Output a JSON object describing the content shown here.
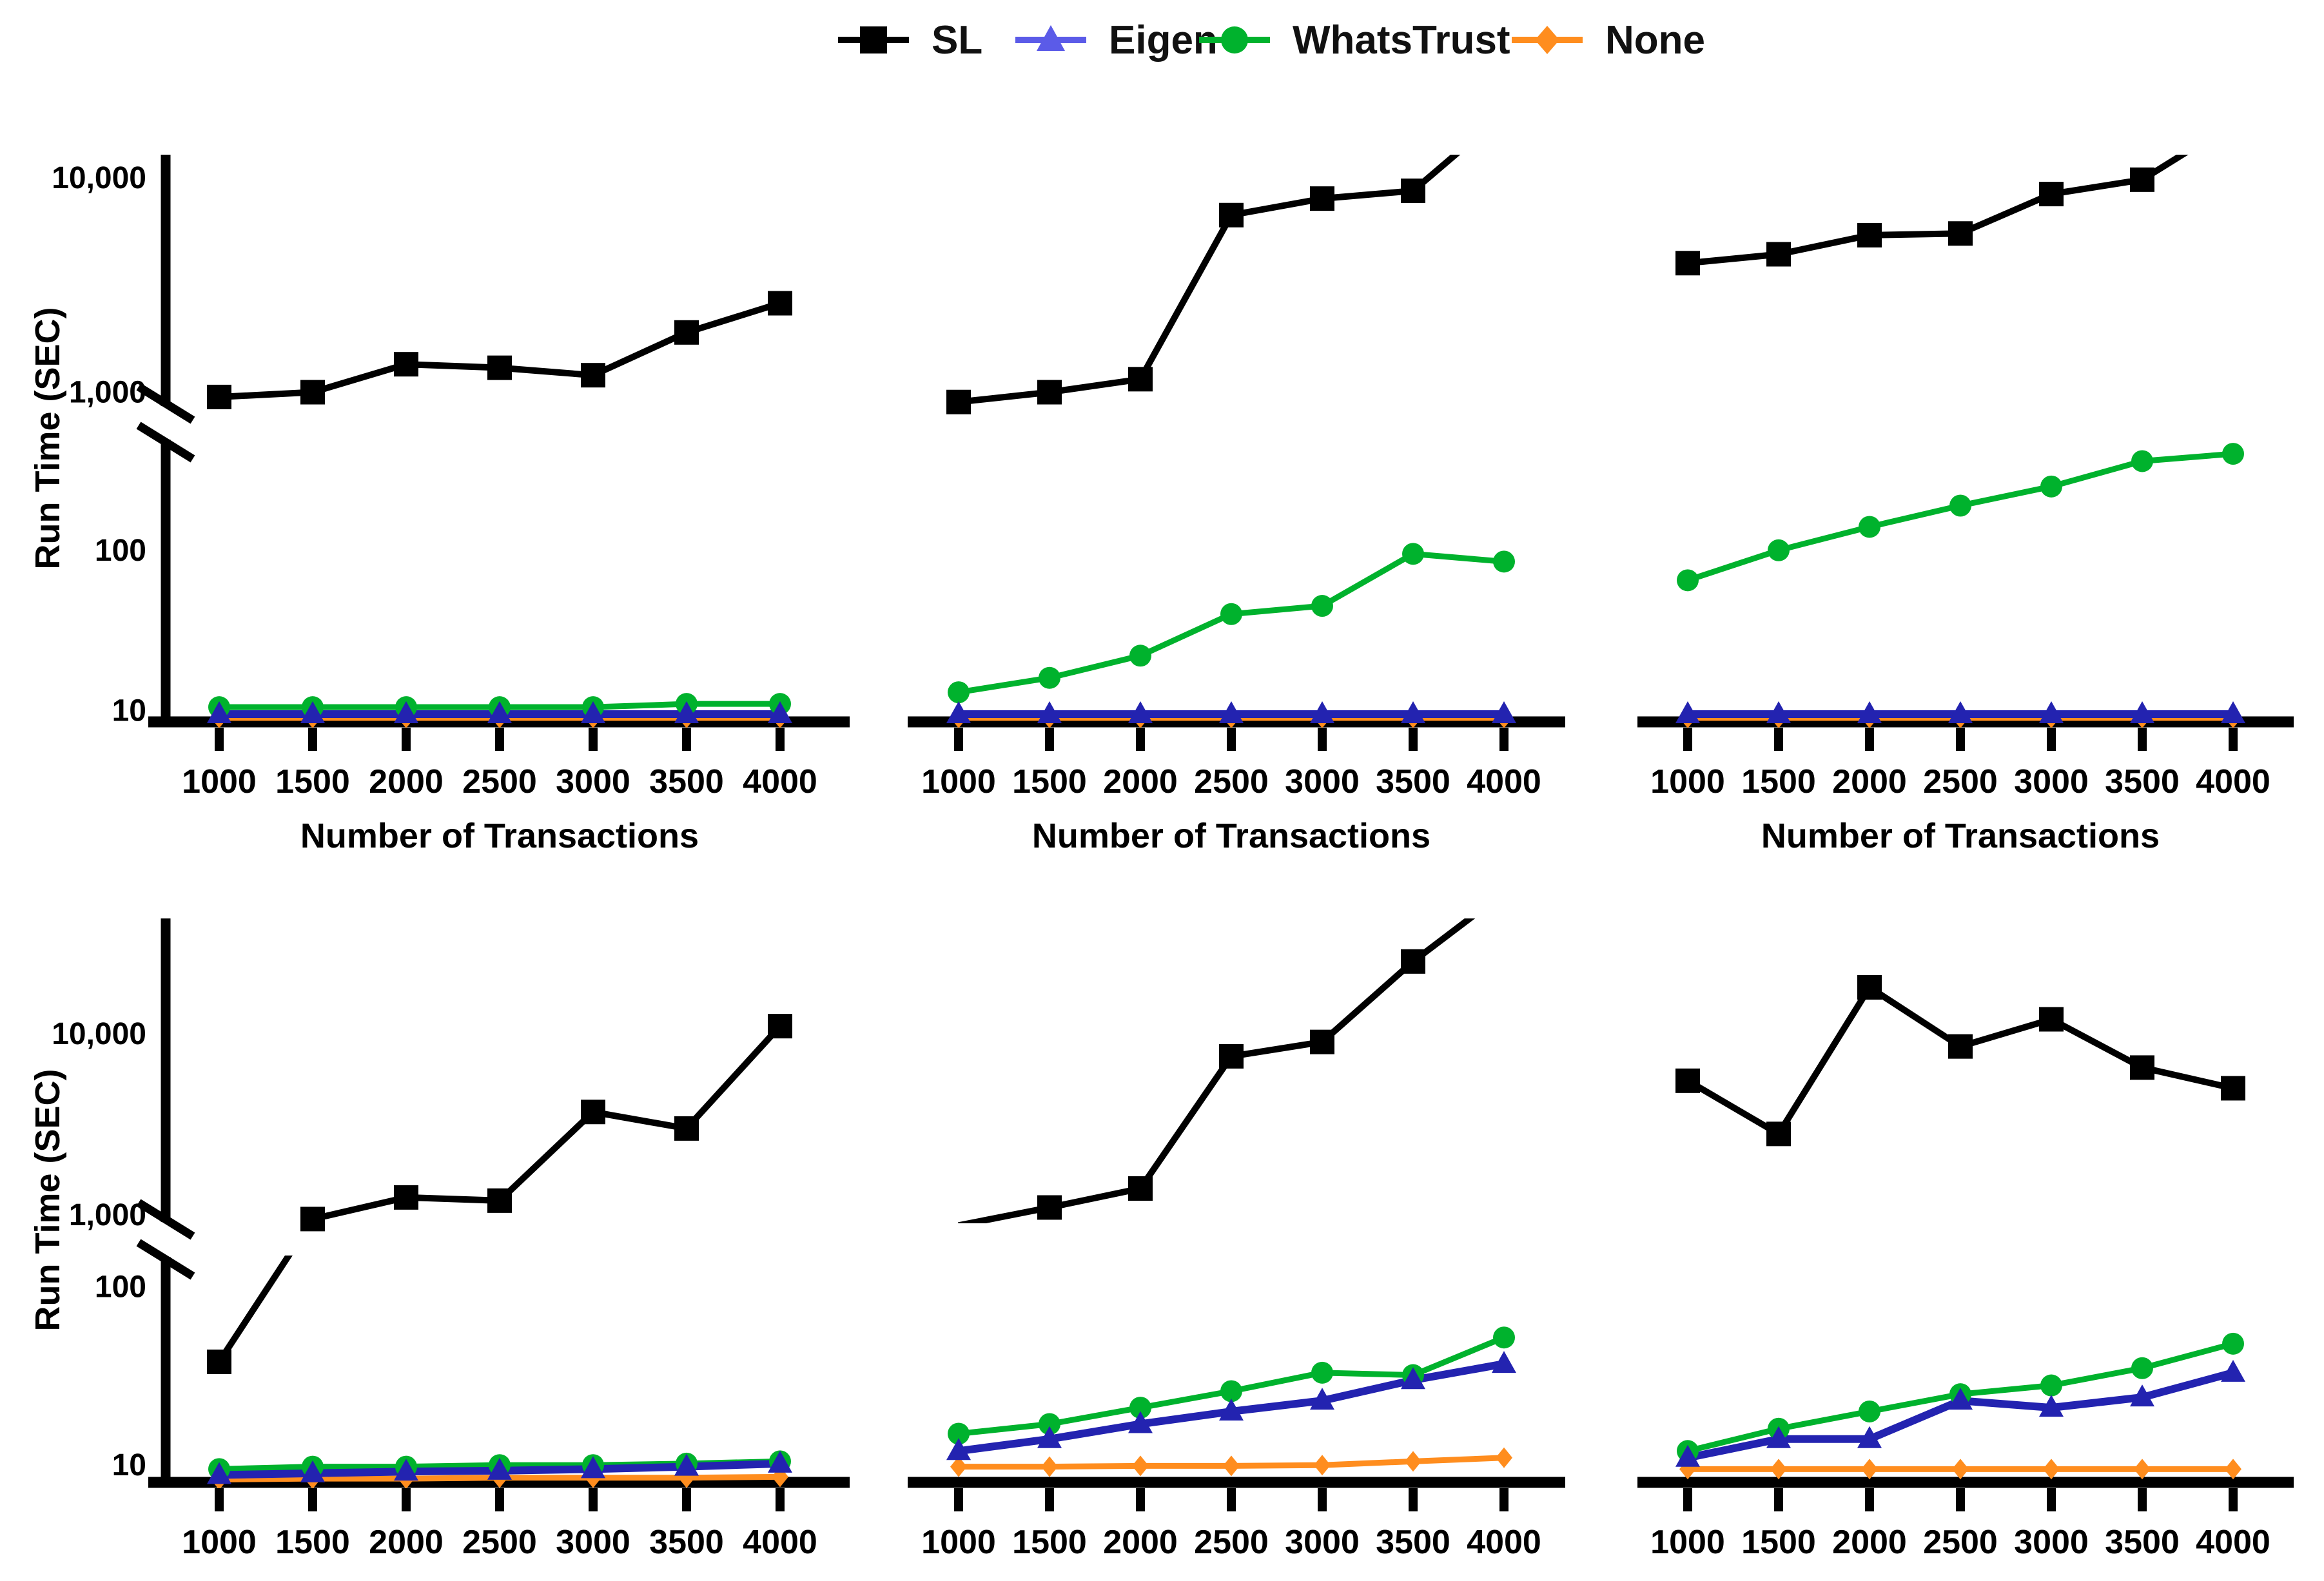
{
  "legend": {
    "items": [
      {
        "label": "SL",
        "color": "#000000",
        "swatch_color": "#000000",
        "marker": "square"
      },
      {
        "label": "Eigen",
        "color": "#2323B0",
        "swatch_color": "#5B5BE8",
        "marker": "triangle"
      },
      {
        "label": "WhatsTrust",
        "color": "#00B22D",
        "swatch_color": "#00B22D",
        "marker": "circle"
      },
      {
        "label": "None",
        "color": "#FF8D1E",
        "swatch_color": "#FF8D1E",
        "marker": "diamond"
      }
    ]
  },
  "chart_data": {
    "type": "line",
    "title": "",
    "xlabel": "Number of Transactions",
    "ylabel": "Run Time (SEC)",
    "x": [
      1000,
      1500,
      2000,
      2500,
      3000,
      3500,
      4000
    ],
    "x_tick_labels": [
      "1000",
      "1500",
      "2000",
      "2500",
      "3000",
      "3500",
      "4000"
    ],
    "y_scale": "log-broken",
    "grid": false,
    "legend_position": "top-center",
    "rows": [
      {
        "y_tick_labels": [
          "10",
          "100",
          "1,000",
          "10,000"
        ],
        "y_tick_values": [
          10,
          100,
          1000,
          10000
        ],
        "break_between": [
          500,
          850
        ],
        "ylim": [
          8.5,
          13000
        ]
      },
      {
        "y_tick_labels": [
          "10",
          "100",
          "1,000",
          "10,000"
        ],
        "y_tick_values": [
          10,
          100,
          1000,
          10000
        ],
        "break_between": [
          150,
          900
        ],
        "ylim": [
          8,
          45000
        ]
      }
    ],
    "subplots": [
      {
        "row": 0,
        "col": 0,
        "series": [
          {
            "name": "SL",
            "values": [
              950,
              1000,
              1350,
              1300,
              1200,
              1900,
              2600
            ]
          },
          {
            "name": "Eigen",
            "values": [
              9.5,
              9.5,
              9.5,
              9.5,
              9.5,
              9.5,
              9.5
            ]
          },
          {
            "name": "WhatsTrust",
            "values": [
              10.5,
              10.5,
              10.5,
              10.5,
              10.5,
              11,
              11
            ]
          },
          {
            "name": "None",
            "values": [
              9,
              9,
              9,
              9,
              9,
              9,
              9
            ]
          }
        ]
      },
      {
        "row": 0,
        "col": 1,
        "series": [
          {
            "name": "SL",
            "values": [
              900,
              1000,
              1150,
              6700,
              8000,
              8700,
              20000
            ]
          },
          {
            "name": "Eigen",
            "values": [
              9.5,
              9.5,
              9.5,
              9.5,
              9.5,
              9.5,
              9.5
            ]
          },
          {
            "name": "WhatsTrust",
            "values": [
              13,
              16,
              22,
              40,
              45,
              95,
              85
            ]
          },
          {
            "name": "None",
            "values": [
              9,
              9,
              9,
              9,
              9,
              9,
              9
            ]
          }
        ]
      },
      {
        "row": 0,
        "col": 2,
        "series": [
          {
            "name": "SL",
            "values": [
              4000,
              4400,
              5400,
              5500,
              8400,
              9800,
              18000
            ]
          },
          {
            "name": "Eigen",
            "values": [
              9.5,
              9.5,
              9.5,
              9.5,
              9.5,
              9.5,
              9.5
            ]
          },
          {
            "name": "WhatsTrust",
            "values": [
              65,
              100,
              140,
              190,
              250,
              360,
              400
            ]
          },
          {
            "name": "None",
            "values": [
              9,
              9,
              9,
              9,
              9,
              9,
              9
            ]
          }
        ]
      },
      {
        "row": 1,
        "col": 0,
        "series": [
          {
            "name": "SL",
            "values": [
              38,
              950,
              1250,
              1200,
              3700,
              3000,
              11000
            ]
          },
          {
            "name": "Eigen",
            "values": [
              8.8,
              9,
              9.2,
              9.3,
              9.5,
              9.8,
              10.2
            ]
          },
          {
            "name": "WhatsTrust",
            "values": [
              9.5,
              9.8,
              9.8,
              10,
              10,
              10.2,
              10.5
            ]
          },
          {
            "name": "None",
            "values": [
              8.3,
              8.4,
              8.4,
              8.5,
              8.5,
              8.5,
              8.6
            ]
          }
        ]
      },
      {
        "row": 1,
        "col": 1,
        "series": [
          {
            "name": "SL",
            "values": [
              800,
              1100,
              1400,
              7500,
              9000,
              25000,
              60000
            ]
          },
          {
            "name": "Eigen",
            "values": [
              12,
              14,
              17,
              20,
              23,
              30,
              37
            ]
          },
          {
            "name": "WhatsTrust",
            "values": [
              15,
              17,
              21,
              26,
              33,
              32,
              52
            ]
          },
          {
            "name": "None",
            "values": [
              9.8,
              9.8,
              9.9,
              9.9,
              10,
              10.5,
              11
            ]
          }
        ]
      },
      {
        "row": 1,
        "col": 2,
        "series": [
          {
            "name": "SL",
            "values": [
              5500,
              2800,
              18000,
              8500,
              12000,
              6500,
              5000
            ]
          },
          {
            "name": "Eigen",
            "values": [
              11,
              14,
              14,
              23,
              21,
              24,
              33
            ]
          },
          {
            "name": "WhatsTrust",
            "values": [
              12,
              16,
              20,
              25,
              28,
              35,
              48
            ]
          },
          {
            "name": "None",
            "values": [
              9.5,
              9.5,
              9.5,
              9.5,
              9.5,
              9.5,
              9.5
            ]
          }
        ]
      }
    ]
  },
  "colors": {
    "background": "#FFFFFF",
    "axis": "#000000",
    "sl": "#000000",
    "eigen_plot": "#2323B0",
    "eigen_legend": "#5B5BE8",
    "whatstrust": "#00B22D",
    "none": "#FF8D1E"
  }
}
